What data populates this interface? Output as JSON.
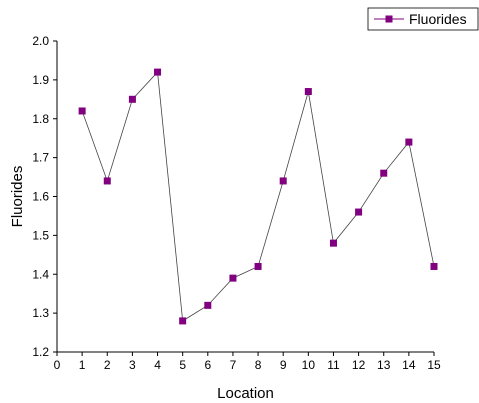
{
  "chart_data": {
    "type": "line",
    "title": "",
    "xlabel": "Location",
    "ylabel": "Fluorides",
    "xlim": [
      0,
      15
    ],
    "ylim": [
      1.2,
      2.0
    ],
    "x_ticks": [
      "0",
      "1",
      "2",
      "3",
      "4",
      "5",
      "6",
      "7",
      "8",
      "9",
      "10",
      "11",
      "12",
      "13",
      "14",
      "15"
    ],
    "y_ticks": [
      "1.2",
      "1.3",
      "1.4",
      "1.5",
      "1.6",
      "1.7",
      "1.8",
      "1.9",
      "2.0"
    ],
    "grid": false,
    "legend_position": "top-right",
    "series": [
      {
        "name": "Fluorides",
        "color": "#800080",
        "marker": "square",
        "x": [
          1,
          2,
          3,
          4,
          5,
          6,
          7,
          8,
          9,
          10,
          11,
          12,
          13,
          14,
          15
        ],
        "values": [
          1.82,
          1.64,
          1.85,
          1.92,
          1.28,
          1.32,
          1.39,
          1.42,
          1.64,
          1.87,
          1.48,
          1.56,
          1.66,
          1.74,
          1.42
        ]
      }
    ]
  }
}
